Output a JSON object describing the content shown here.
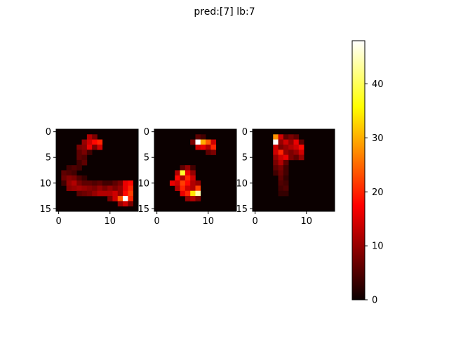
{
  "chart_data": {
    "type": "heatmap",
    "title": "pred:[7]  lb:7",
    "colormap": "hot",
    "colorbar": {
      "vmin": 0,
      "vmax": 48,
      "ticks": [
        0,
        10,
        20,
        30,
        40
      ]
    },
    "panels": [
      {
        "x_ticks": [
          0,
          10
        ],
        "y_ticks": [
          0,
          5,
          10,
          15
        ],
        "size": [
          16,
          16
        ],
        "cells": [
          [
            1,
            6,
            12
          ],
          [
            1,
            7,
            8
          ],
          [
            2,
            5,
            10
          ],
          [
            2,
            6,
            14
          ],
          [
            2,
            7,
            18
          ],
          [
            2,
            8,
            20
          ],
          [
            3,
            4,
            8
          ],
          [
            3,
            5,
            9
          ],
          [
            3,
            6,
            16
          ],
          [
            3,
            7,
            8
          ],
          [
            3,
            8,
            14
          ],
          [
            4,
            4,
            6
          ],
          [
            4,
            5,
            8
          ],
          [
            4,
            6,
            4
          ],
          [
            5,
            4,
            6
          ],
          [
            5,
            5,
            5
          ],
          [
            6,
            4,
            4
          ],
          [
            6,
            5,
            6
          ],
          [
            7,
            2,
            4
          ],
          [
            7,
            3,
            5
          ],
          [
            7,
            4,
            4
          ],
          [
            8,
            1,
            6
          ],
          [
            8,
            2,
            5
          ],
          [
            8,
            3,
            4
          ],
          [
            9,
            1,
            7
          ],
          [
            9,
            2,
            9
          ],
          [
            9,
            3,
            8
          ],
          [
            9,
            4,
            5
          ],
          [
            9,
            5,
            3
          ],
          [
            10,
            1,
            4
          ],
          [
            10,
            2,
            10
          ],
          [
            10,
            3,
            12
          ],
          [
            10,
            4,
            8
          ],
          [
            10,
            5,
            6
          ],
          [
            10,
            6,
            6
          ],
          [
            10,
            7,
            5
          ],
          [
            10,
            8,
            6
          ],
          [
            10,
            9,
            4
          ],
          [
            10,
            10,
            4
          ],
          [
            10,
            11,
            6
          ],
          [
            10,
            12,
            8
          ],
          [
            10,
            13,
            16
          ],
          [
            10,
            14,
            18
          ],
          [
            11,
            2,
            9
          ],
          [
            11,
            3,
            10
          ],
          [
            11,
            4,
            11
          ],
          [
            11,
            5,
            10
          ],
          [
            11,
            6,
            9
          ],
          [
            11,
            7,
            8
          ],
          [
            11,
            8,
            10
          ],
          [
            11,
            9,
            8
          ],
          [
            11,
            10,
            10
          ],
          [
            11,
            11,
            8
          ],
          [
            11,
            12,
            10
          ],
          [
            11,
            13,
            16
          ],
          [
            11,
            14,
            20
          ],
          [
            12,
            4,
            6
          ],
          [
            12,
            5,
            7
          ],
          [
            12,
            6,
            8
          ],
          [
            12,
            7,
            10
          ],
          [
            12,
            8,
            12
          ],
          [
            12,
            9,
            12
          ],
          [
            12,
            10,
            12
          ],
          [
            12,
            11,
            14
          ],
          [
            12,
            12,
            10
          ],
          [
            12,
            13,
            18
          ],
          [
            12,
            14,
            22
          ],
          [
            13,
            10,
            8
          ],
          [
            13,
            11,
            14
          ],
          [
            13,
            12,
            24
          ],
          [
            13,
            13,
            48
          ],
          [
            13,
            14,
            20
          ],
          [
            14,
            12,
            10
          ],
          [
            14,
            13,
            14
          ],
          [
            14,
            14,
            8
          ]
        ]
      },
      {
        "x_ticks": [
          0,
          10
        ],
        "y_ticks": [
          0,
          5,
          10,
          15
        ],
        "size": [
          16,
          16
        ],
        "cells": [
          [
            1,
            8,
            6
          ],
          [
            1,
            9,
            4
          ],
          [
            2,
            7,
            8
          ],
          [
            2,
            8,
            48
          ],
          [
            2,
            9,
            30
          ],
          [
            2,
            10,
            24
          ],
          [
            2,
            11,
            14
          ],
          [
            3,
            8,
            14
          ],
          [
            3,
            9,
            16
          ],
          [
            3,
            10,
            12
          ],
          [
            3,
            11,
            20
          ],
          [
            4,
            10,
            6
          ],
          [
            4,
            11,
            8
          ],
          [
            7,
            5,
            6
          ],
          [
            7,
            6,
            10
          ],
          [
            7,
            7,
            4
          ],
          [
            8,
            4,
            12
          ],
          [
            8,
            5,
            38
          ],
          [
            8,
            6,
            16
          ],
          [
            8,
            7,
            10
          ],
          [
            9,
            4,
            18
          ],
          [
            9,
            5,
            12
          ],
          [
            9,
            6,
            20
          ],
          [
            9,
            7,
            14
          ],
          [
            10,
            3,
            16
          ],
          [
            10,
            4,
            14
          ],
          [
            10,
            5,
            22
          ],
          [
            10,
            6,
            18
          ],
          [
            10,
            7,
            12
          ],
          [
            10,
            8,
            10
          ],
          [
            11,
            4,
            12
          ],
          [
            11,
            5,
            20
          ],
          [
            11,
            6,
            14
          ],
          [
            11,
            7,
            12
          ],
          [
            11,
            8,
            22
          ],
          [
            12,
            5,
            16
          ],
          [
            12,
            6,
            20
          ],
          [
            12,
            7,
            34
          ],
          [
            12,
            8,
            44
          ],
          [
            13,
            6,
            10
          ],
          [
            13,
            7,
            12
          ],
          [
            13,
            8,
            8
          ]
        ]
      },
      {
        "x_ticks": [
          0,
          10
        ],
        "y_ticks": [
          0,
          5,
          10,
          15
        ],
        "size": [
          16,
          16
        ],
        "cells": [
          [
            1,
            4,
            28
          ],
          [
            1,
            5,
            14
          ],
          [
            1,
            6,
            6
          ],
          [
            1,
            7,
            8
          ],
          [
            1,
            8,
            6
          ],
          [
            2,
            4,
            48
          ],
          [
            2,
            5,
            10
          ],
          [
            2,
            6,
            14
          ],
          [
            2,
            7,
            10
          ],
          [
            2,
            8,
            16
          ],
          [
            2,
            9,
            6
          ],
          [
            3,
            4,
            14
          ],
          [
            3,
            5,
            8
          ],
          [
            3,
            6,
            10
          ],
          [
            3,
            7,
            12
          ],
          [
            3,
            8,
            14
          ],
          [
            3,
            9,
            18
          ],
          [
            4,
            4,
            14
          ],
          [
            4,
            5,
            20
          ],
          [
            4,
            6,
            10
          ],
          [
            4,
            7,
            8
          ],
          [
            4,
            8,
            10
          ],
          [
            4,
            9,
            14
          ],
          [
            5,
            4,
            10
          ],
          [
            5,
            5,
            14
          ],
          [
            5,
            6,
            16
          ],
          [
            5,
            7,
            8
          ],
          [
            5,
            8,
            6
          ],
          [
            5,
            9,
            10
          ],
          [
            6,
            4,
            8
          ],
          [
            6,
            5,
            12
          ],
          [
            6,
            6,
            6
          ],
          [
            7,
            4,
            6
          ],
          [
            7,
            5,
            8
          ],
          [
            7,
            6,
            4
          ],
          [
            8,
            4,
            4
          ],
          [
            8,
            5,
            7
          ],
          [
            8,
            6,
            4
          ],
          [
            9,
            5,
            6
          ],
          [
            9,
            6,
            3
          ],
          [
            10,
            5,
            5
          ],
          [
            10,
            6,
            4
          ],
          [
            11,
            5,
            4
          ],
          [
            11,
            6,
            5
          ],
          [
            12,
            5,
            3
          ],
          [
            12,
            6,
            3
          ]
        ]
      }
    ]
  }
}
